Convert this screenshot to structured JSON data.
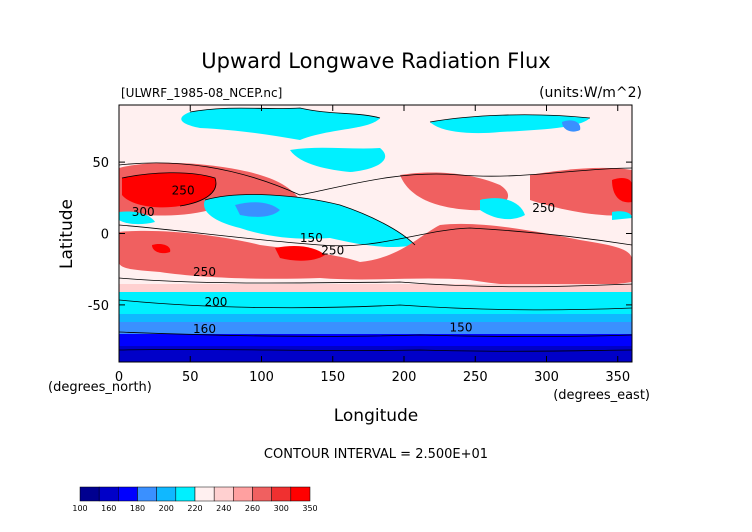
{
  "chart_data": {
    "type": "heatmap",
    "title": "Upward Longwave Radiation Flux",
    "subtitle_left": "[ULWRF_1985-08_NCEP.nc]",
    "units": "(units:W/m^2)",
    "xlabel": "Longitude",
    "ylabel": "Latitude",
    "x_unit": "(degrees_east)",
    "y_unit": "(degrees_north)",
    "xlim": [
      0,
      360
    ],
    "ylim": [
      -90,
      90
    ],
    "x_ticks": [
      0,
      50,
      100,
      150,
      200,
      250,
      300,
      350
    ],
    "y_ticks": [
      -50,
      0,
      50
    ],
    "footer": "CONTOUR INTERVAL = 2.500E+01",
    "contour_labels": [
      {
        "text": "250",
        "x": 45,
        "y": 30
      },
      {
        "text": "300",
        "x": 17,
        "y": 15
      },
      {
        "text": "250",
        "x": 150,
        "y": -12
      },
      {
        "text": "250",
        "x": 60,
        "y": -27
      },
      {
        "text": "200",
        "x": 68,
        "y": -48
      },
      {
        "text": "160",
        "x": 60,
        "y": -67
      },
      {
        "text": "150",
        "x": 240,
        "y": -66
      },
      {
        "text": "250",
        "x": 298,
        "y": 18
      },
      {
        "text": "150",
        "x": 135,
        "y": -3
      }
    ],
    "colorbar": {
      "colors": [
        "#000090",
        "#0000c8",
        "#0000ff",
        "#3a90ff",
        "#10b8ff",
        "#00f0ff",
        "#fff0f0",
        "#ffd0d0",
        "#ffa0a0",
        "#f06060",
        "#f03030",
        "#ff0000"
      ],
      "tick_labels": [
        "100",
        "160",
        "180",
        "200",
        "220",
        "240",
        "260",
        "300",
        "350"
      ]
    }
  }
}
